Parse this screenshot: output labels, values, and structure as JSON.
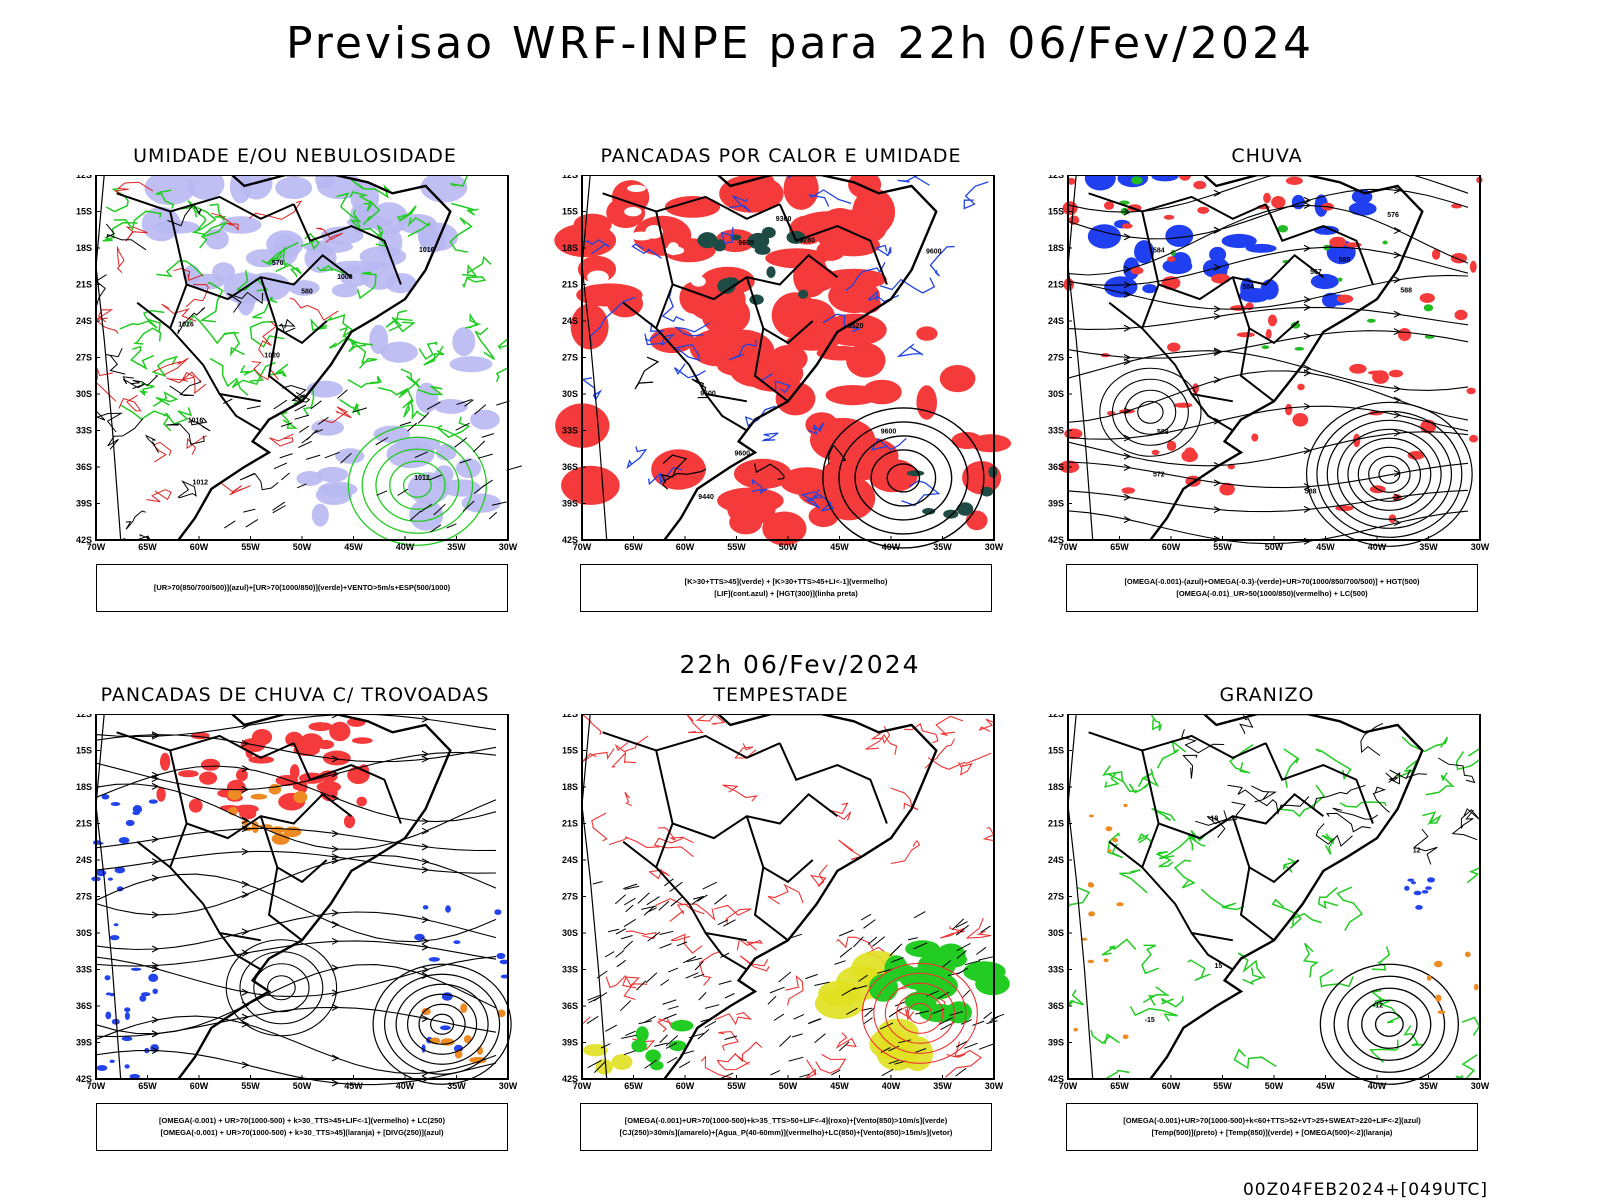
{
  "main_title": "Previsao WRF-INPE  para 22h 06/Fev/2024",
  "mid_title": "22h 06/Fev/2024",
  "footer": "00Z04FEB2024+[049UTC]",
  "lat_labels": [
    "12S",
    "15S",
    "18S",
    "21S",
    "24S",
    "27S",
    "30S",
    "33S",
    "36S",
    "39S",
    "42S"
  ],
  "lon_labels": [
    "70W",
    "65W",
    "60W",
    "55W",
    "50W",
    "45W",
    "40W",
    "35W",
    "30W"
  ],
  "panels": [
    {
      "title": "UMIDADE E/OU NEBULOSIDADE",
      "legend": [
        "[UR>70(850/700/500)](azul)+[UR>70(1000/850)](verde)+VENTO>5m/s+ESP(500/1000)"
      ],
      "contour_labels": [
        "1012",
        "1016",
        "1016",
        "1020",
        "1008",
        "1012",
        "570",
        "580",
        "1016"
      ]
    },
    {
      "title": "PANCADAS POR CALOR E UMIDADE",
      "legend": [
        "[K>30+TTS>45](verde) + [K>30+TTS>45+LI<-1](vermelho)",
        "[LIF](cont.azul) + [HGT(300)](linha preta)"
      ],
      "contour_labels": [
        "9600",
        "9600",
        "9600",
        "9440",
        "9360",
        "9280",
        "9520",
        "9600",
        "9600"
      ]
    },
    {
      "title": "CHUVA",
      "legend": [
        "[OMEGA(-0.001)-(azul)+OMEGA(-0.3)-(verde)+UR>70(1000/850/700/500)] + HGT(500)",
        "[OMEGA(-0.01)_UR>50(1000/850)(vermelho) + LC(500)"
      ],
      "contour_labels": [
        "588",
        "584",
        "588",
        "576",
        "572",
        "567",
        "588",
        "588",
        "584"
      ]
    },
    {
      "title": "PANCADAS DE CHUVA C/ TROVOADAS",
      "legend": [
        "[OMEGA(-0.001) + UR>70(1000-500) + k>30_TTS>45+LIF<-1](vermelho) + LC(250)",
        "[OMEGA(-0.001) + UR>70(1000-500) + k>30_TTS>45](laranja) + [DIVG(250)](azul)"
      ],
      "contour_labels": []
    },
    {
      "title": "TEMPESTADE",
      "legend": [
        "[OMEGA(-0.001)+UR>70(1000-500)+k>35_TTS>50+LIF<-4](roxo)+[Vento(850)>10m/s](verde)",
        "[CJ(250)>30m/s](amarelo)+[Agua_P(40-60mm)](vermelho)+LC(850)+[Vento(850)>15m/s](vetor)"
      ],
      "contour_labels": []
    },
    {
      "title": "GRANIZO",
      "legend": [
        "[OMEGA(-0.001)+UR>70(1000-500)+k<60+TTS>52+VT>25+SWEAT>220+LIF<-2](azul)",
        "[Temp(500)](preto) + [Temp(850)](verde) + [OMEGA(500)<-2](laranja)"
      ],
      "contour_labels": [
        "-12",
        "-15",
        "-18",
        "15",
        "12"
      ]
    }
  ]
}
